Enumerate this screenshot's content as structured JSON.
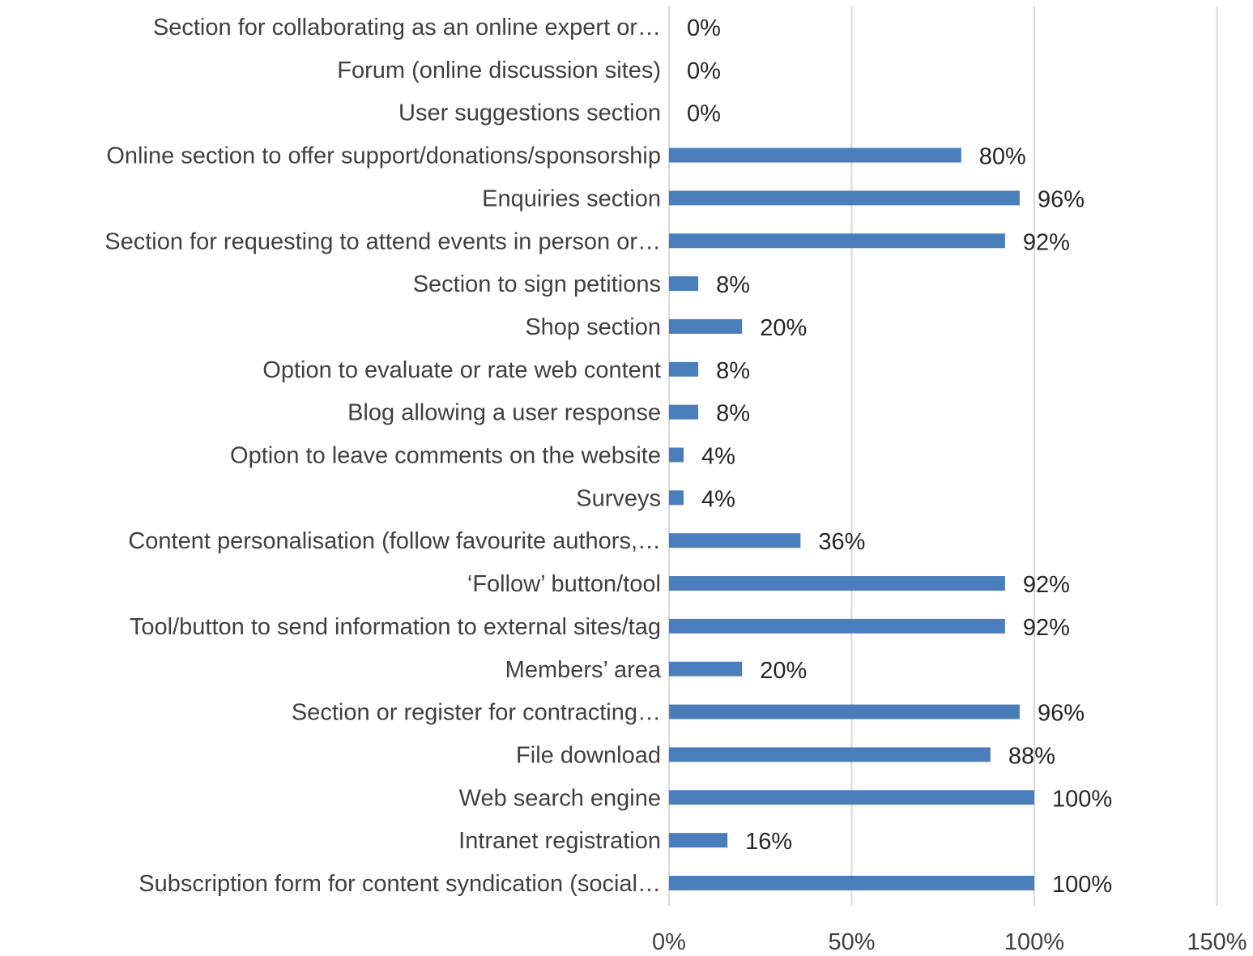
{
  "chart_data": {
    "type": "bar",
    "orientation": "horizontal",
    "categories": [
      "Section for collaborating as an online expert or…",
      "Forum (online discussion sites)",
      "User suggestions section",
      "Online section to offer support/donations/sponsorship",
      "Enquiries section",
      "Section for requesting to attend events in person or…",
      "Section to sign petitions",
      "Shop section",
      "Option to evaluate or rate web content",
      "Blog allowing a user response",
      "Option to leave comments on the website",
      "Surveys",
      "Content personalisation (follow favourite authors,…",
      "‘Follow’ button/tool",
      "Tool/button to send information to external sites/tag",
      "Members’ area",
      "Section or register for contracting…",
      "File download",
      "Web search engine",
      "Intranet registration",
      "Subscription form for content syndication (social…"
    ],
    "values": [
      0,
      0,
      0,
      80,
      96,
      92,
      8,
      20,
      8,
      8,
      4,
      4,
      36,
      92,
      92,
      20,
      96,
      88,
      100,
      16,
      100
    ],
    "data_labels": [
      "0%",
      "0%",
      "0%",
      "80%",
      "96%",
      "92%",
      "8%",
      "20%",
      "8%",
      "8%",
      "4%",
      "4%",
      "36%",
      "92%",
      "92%",
      "20%",
      "96%",
      "88%",
      "100%",
      "16%",
      "100%"
    ],
    "xlim": [
      0,
      150
    ],
    "x_ticks": [
      0,
      50,
      100,
      150
    ],
    "x_tick_labels": [
      "0%",
      "50%",
      "100%",
      "150%"
    ],
    "grid": true,
    "legend": "none",
    "title": "",
    "xlabel": "",
    "ylabel": "",
    "bar_color": "#4a7ebb",
    "grid_color": "#d9d9d9"
  }
}
